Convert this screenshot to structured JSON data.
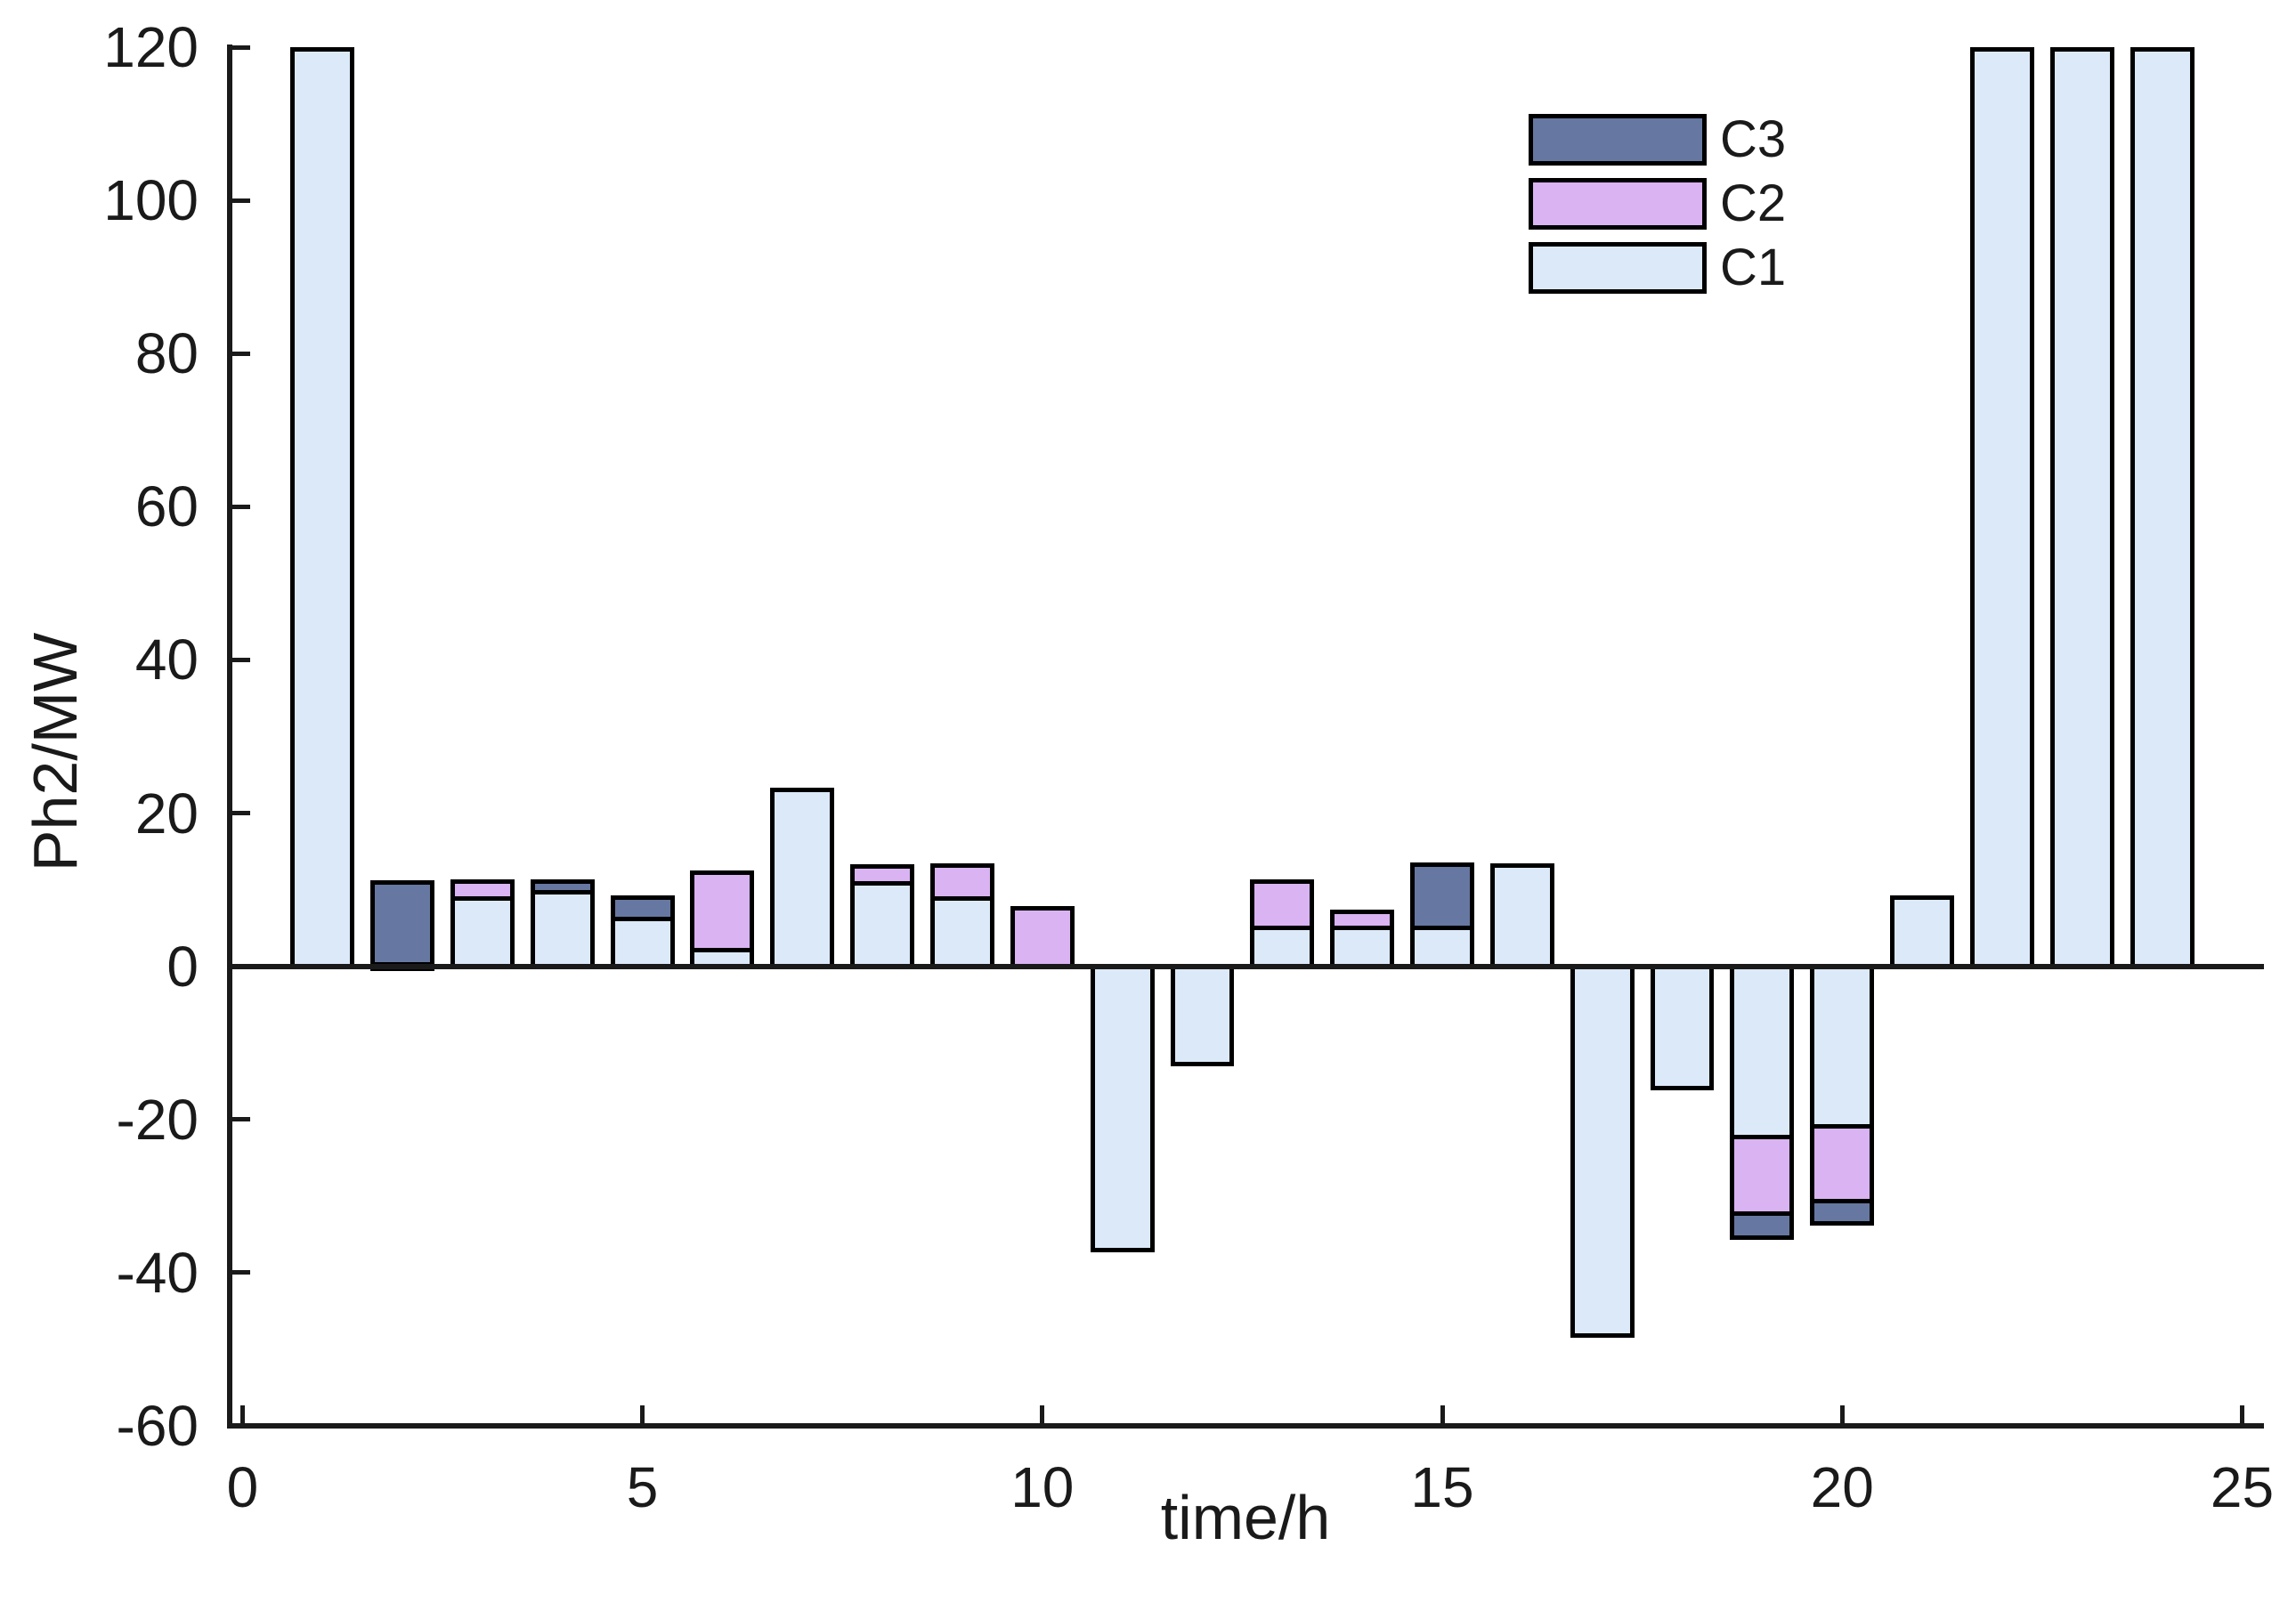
{
  "labels": {
    "xlabel": "time/h",
    "ylabel": "Ph2/MW"
  },
  "legend": {
    "entries": [
      {
        "label": "C3",
        "series": "C3"
      },
      {
        "label": "C2",
        "series": "C2"
      },
      {
        "label": "C1",
        "series": "C1"
      }
    ]
  },
  "chart_data": {
    "type": "bar",
    "stacked": true,
    "title": "",
    "xlabel": "time/h",
    "ylabel": "Ph2/MW",
    "xlim": [
      -0.16,
      25.24
    ],
    "ylim": [
      -60,
      120
    ],
    "xticks": [
      0,
      5,
      10,
      15,
      20,
      25
    ],
    "yticks": [
      -60,
      -40,
      -20,
      0,
      20,
      40,
      60,
      80,
      100,
      120
    ],
    "grid": false,
    "legend_position": "upper-right-inside",
    "bar_width": 0.8,
    "categories": [
      1,
      2,
      3,
      4,
      5,
      6,
      7,
      8,
      9,
      10,
      11,
      12,
      13,
      14,
      15,
      16,
      17,
      18,
      19,
      20,
      21,
      22,
      23,
      24
    ],
    "series": [
      {
        "name": "C1",
        "color": "#dce9f8",
        "values": [
          120,
          0.6,
          9.1,
          9.9,
          6.5,
          2.4,
          23.3,
          11.1,
          9.1,
          0,
          -37.3,
          -13.0,
          5.3,
          5.3,
          5.3,
          13.4,
          -48.5,
          -16.2,
          -22.6,
          -21.2,
          9.2,
          120,
          120,
          120
        ]
      },
      {
        "name": "C2",
        "color": "#d9b3f2",
        "values": [
          0,
          0,
          2.2,
          0,
          0,
          10.1,
          0,
          2.2,
          4.3,
          7.9,
          0,
          0,
          6.1,
          2.1,
          0,
          0,
          0,
          0,
          -10.0,
          -9.7,
          0,
          0,
          0,
          0
        ]
      },
      {
        "name": "C3",
        "color": "#6678a1",
        "values": [
          0,
          10.6,
          0,
          1.5,
          2.7,
          0,
          0,
          0,
          0,
          0,
          0,
          0,
          0,
          0,
          8.2,
          0,
          0,
          0,
          -3.1,
          -3.0,
          0,
          0,
          0,
          0
        ]
      }
    ]
  }
}
